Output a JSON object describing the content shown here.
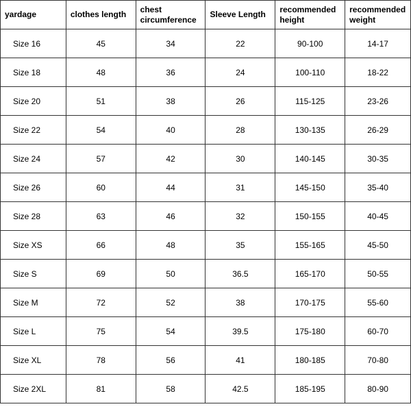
{
  "table": {
    "columns": [
      "yardage",
      "clothes length",
      "chest circumference",
      "Sleeve Length",
      "recommended height",
      "recommended weight"
    ],
    "rows": [
      [
        "Size 16",
        "45",
        "34",
        "22",
        "90-100",
        "14-17"
      ],
      [
        "Size 18",
        "48",
        "36",
        "24",
        "100-110",
        "18-22"
      ],
      [
        "Size 20",
        "51",
        "38",
        "26",
        "115-125",
        "23-26"
      ],
      [
        "Size 22",
        "54",
        "40",
        "28",
        "130-135",
        "26-29"
      ],
      [
        "Size 24",
        "57",
        "42",
        "30",
        "140-145",
        "30-35"
      ],
      [
        "Size 26",
        "60",
        "44",
        "31",
        "145-150",
        "35-40"
      ],
      [
        "Size 28",
        "63",
        "46",
        "32",
        "150-155",
        "40-45"
      ],
      [
        "Size XS",
        "66",
        "48",
        "35",
        "155-165",
        "45-50"
      ],
      [
        "Size S",
        "69",
        "50",
        "36.5",
        "165-170",
        "50-55"
      ],
      [
        "Size M",
        "72",
        "52",
        "38",
        "170-175",
        "55-60"
      ],
      [
        "Size L",
        "75",
        "54",
        "39.5",
        "175-180",
        "60-70"
      ],
      [
        "Size XL",
        "78",
        "56",
        "41",
        "180-185",
        "70-80"
      ],
      [
        "Size 2XL",
        "81",
        "58",
        "42.5",
        "185-195",
        "80-90"
      ]
    ],
    "border_color": "#333333",
    "background_color": "#ffffff",
    "text_color": "#000000",
    "header_fontsize": 12,
    "cell_fontsize": 12,
    "header_fontweight": "bold",
    "column_widths_pct": [
      16,
      17,
      17,
      17,
      17,
      16
    ]
  }
}
